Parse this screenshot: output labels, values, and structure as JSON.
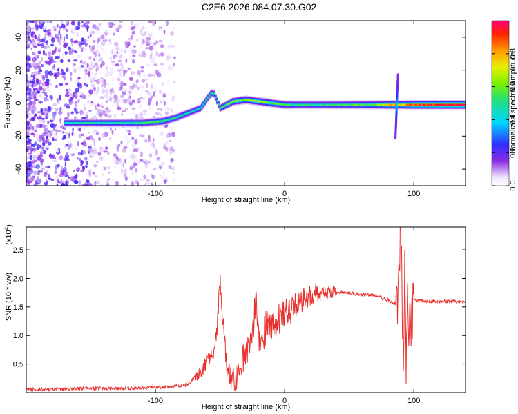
{
  "title": "C2E6.2026.084.07.30.G02",
  "colors": {
    "snr_line": "#e8302e",
    "axis": "#000000"
  },
  "chart_data": [
    {
      "type": "heatmap",
      "title": "C2E6.2026.084.07.30.G02",
      "xlabel": "Height of straight line (km)",
      "ylabel": "Frequency (Hz)",
      "xlim": [
        -200,
        140
      ],
      "ylim": [
        -50,
        50
      ],
      "xticks": [
        -100,
        0,
        100
      ],
      "yticks": [
        -40,
        -20,
        0,
        20,
        40
      ],
      "xtick_labels": [
        "-100",
        "0",
        "100"
      ],
      "ytick_labels": [
        "-40",
        "-20",
        "0",
        "20",
        "40"
      ],
      "colorbar": {
        "label": "Normalized spectral amplitude",
        "ticks": [
          0.0,
          0.2,
          0.4,
          0.6,
          0.8
        ],
        "tick_labels": [
          "0.0",
          "0.2",
          "0.4",
          "0.6",
          "0.8"
        ],
        "range": [
          0,
          1
        ]
      },
      "ridge": {
        "x": [
          -170,
          -150,
          -130,
          -110,
          -95,
          -85,
          -75,
          -65,
          -60,
          -57,
          -55,
          -50,
          -40,
          -30,
          -20,
          -10,
          0,
          10,
          30,
          50,
          70,
          85,
          90,
          100,
          120,
          140
        ],
        "y": [
          -12,
          -12,
          -12,
          -12,
          -11,
          -9,
          -6,
          -3,
          3,
          6,
          6,
          -3,
          1,
          2,
          1,
          0,
          -1,
          -1,
          -1,
          -1,
          -1,
          -1,
          -1,
          -1,
          -1,
          -1
        ],
        "amplitude": [
          0.45,
          0.45,
          0.45,
          0.5,
          0.55,
          0.5,
          0.45,
          0.45,
          0.5,
          0.45,
          0.45,
          0.5,
          0.6,
          0.6,
          0.65,
          0.6,
          0.55,
          0.5,
          0.5,
          0.55,
          0.6,
          0.8,
          0.7,
          0.9,
          0.95,
          0.95
        ]
      },
      "grid": false
    },
    {
      "type": "line",
      "xlabel": "Height of straight line (km)",
      "ylabel": "SNR (10 * v/v)",
      "y_multiplier_label": "(x10",
      "y_multiplier_exp": "4",
      "xlim": [
        -200,
        140
      ],
      "ylim": [
        0,
        2.9
      ],
      "xticks": [
        -100,
        0,
        100
      ],
      "yticks": [
        0.5,
        1.0,
        1.5,
        2.0,
        2.5
      ],
      "xtick_labels": [
        "-100",
        "0",
        "100"
      ],
      "ytick_labels": [
        "0.5",
        "1.0",
        "1.5",
        "2.0",
        "2.5"
      ],
      "series": [
        {
          "x": [
            -200,
            -180,
            -160,
            -140,
            -120,
            -100,
            -90,
            -80,
            -75,
            -70,
            -65,
            -60,
            -55,
            -52,
            -50,
            -47,
            -45,
            -43,
            -40,
            -37,
            -35,
            -30,
            -25,
            -22,
            -20,
            -17,
            -15,
            -10,
            -5,
            0,
            5,
            10,
            15,
            20,
            25,
            30,
            40,
            50,
            60,
            70,
            80,
            85,
            88,
            90,
            92,
            93,
            94,
            95,
            96,
            97,
            98,
            100,
            105,
            110,
            120,
            130,
            140
          ],
          "y": [
            0.05,
            0.06,
            0.07,
            0.07,
            0.08,
            0.09,
            0.1,
            0.12,
            0.15,
            0.25,
            0.35,
            0.55,
            0.75,
            1.2,
            1.95,
            1.0,
            0.5,
            0.3,
            0.2,
            0.3,
            0.5,
            0.7,
            1.0,
            1.7,
            0.95,
            1.0,
            1.1,
            1.2,
            1.3,
            1.35,
            1.45,
            1.55,
            1.65,
            1.7,
            1.75,
            1.75,
            1.76,
            1.74,
            1.72,
            1.7,
            1.62,
            1.55,
            1.6,
            2.9,
            0.1,
            2.4,
            0.5,
            2.2,
            0.8,
            1.9,
            1.1,
            1.62,
            1.6,
            1.6,
            1.6,
            1.6,
            1.58
          ]
        }
      ]
    }
  ]
}
